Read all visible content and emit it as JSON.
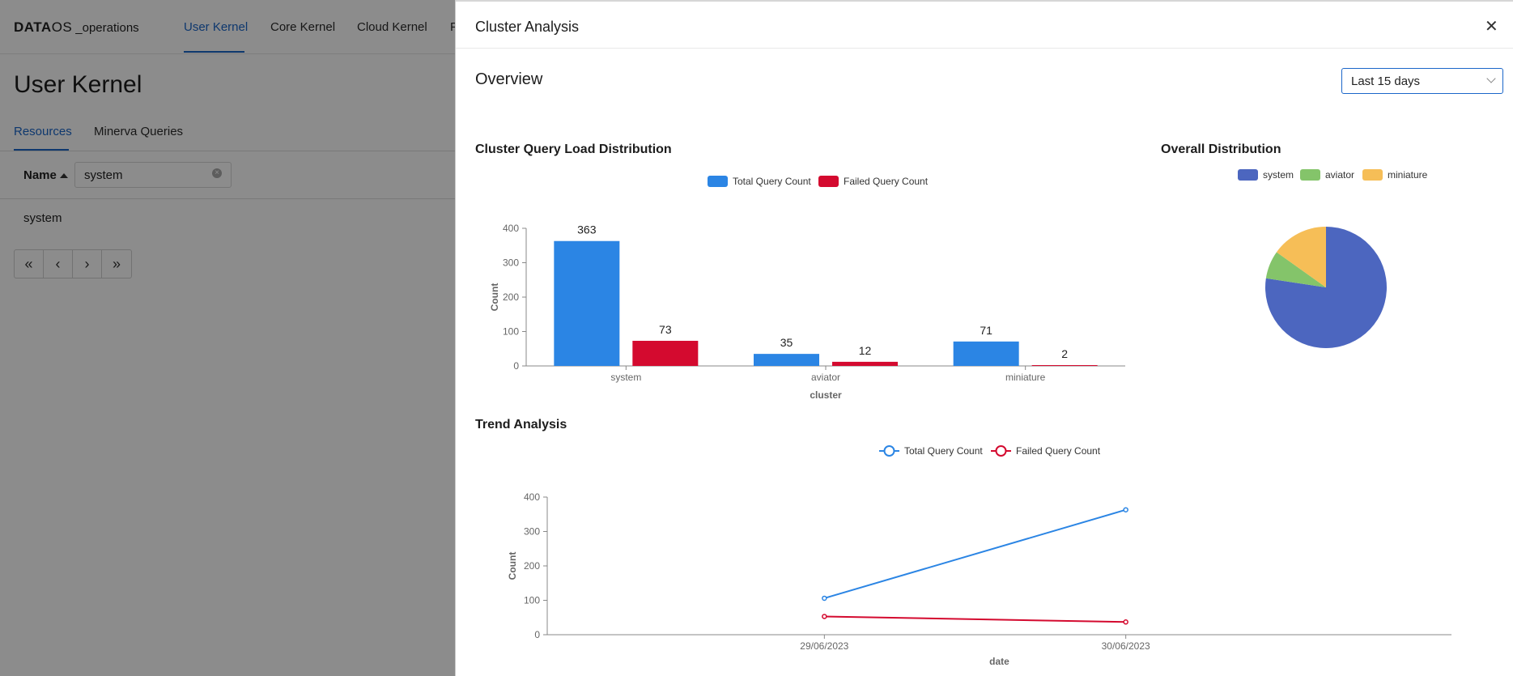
{
  "app": {
    "logo_prefix": "DATA",
    "logo_suffix": "OS",
    "logo_ops": "_operations",
    "nav_tabs": [
      "User Kernel",
      "Core Kernel",
      "Cloud Kernel",
      "P"
    ],
    "active_tab": "User Kernel"
  },
  "page": {
    "title": "User Kernel",
    "sub_tabs": [
      "Resources",
      "Minerva Queries"
    ],
    "name_header": "Name",
    "filter_value": "system",
    "rows": [
      "system"
    ],
    "pager_icons": [
      "first-page-icon",
      "prev-page-icon",
      "next-page-icon",
      "last-page-icon"
    ]
  },
  "panel": {
    "title": "Cluster Analysis",
    "overview_title": "Overview",
    "date_range": "Last 15 days",
    "bar_title": "Cluster Query Load Distribution",
    "pie_title": "Overall Distribution",
    "trend_title": "Trend Analysis"
  },
  "colors": {
    "total": "#2b85e4",
    "failed": "#d40a2f",
    "pie_system": "#4c66bf",
    "pie_aviator": "#84c46a",
    "pie_miniature": "#f6be57",
    "accent": "#1b66c9"
  },
  "chart_data": [
    {
      "type": "bar",
      "title": "Cluster Query Load Distribution",
      "xlabel": "cluster",
      "ylabel": "Count",
      "categories": [
        "system",
        "aviator",
        "miniature"
      ],
      "series": [
        {
          "name": "Total Query Count",
          "values": [
            363,
            35,
            71
          ]
        },
        {
          "name": "Failed Query Count",
          "values": [
            73,
            12,
            2
          ]
        }
      ],
      "ylim": [
        0,
        400
      ],
      "yticks": [
        0,
        100,
        200,
        300,
        400
      ],
      "legend": "top-center",
      "grid": false
    },
    {
      "type": "pie",
      "title": "Overall Distribution",
      "labels": [
        "system",
        "aviator",
        "miniature"
      ],
      "values": [
        363,
        35,
        71
      ],
      "legend": "top-center"
    },
    {
      "type": "line",
      "title": "Trend Analysis",
      "xlabel": "date",
      "ylabel": "Count",
      "x": [
        "29/06/2023",
        "30/06/2023"
      ],
      "series": [
        {
          "name": "Total Query Count",
          "values": [
            106,
            363
          ]
        },
        {
          "name": "Failed Query Count",
          "values": [
            53,
            37
          ]
        }
      ],
      "ylim": [
        0,
        400
      ],
      "yticks": [
        0,
        100,
        200,
        300,
        400
      ],
      "legend": "top-center",
      "grid": false
    }
  ]
}
